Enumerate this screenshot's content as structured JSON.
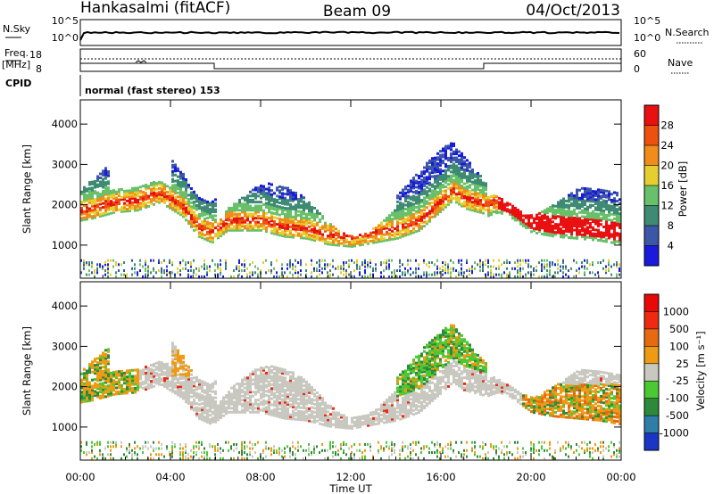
{
  "header": {
    "station": "Hankasalmi (fitACF)",
    "beam": "Beam 09",
    "date": "04/Oct/2013"
  },
  "nsky_panel": {
    "left_label": "N.Sky",
    "right_label": "N.Search",
    "ticks": [
      "10^5",
      "10^0"
    ]
  },
  "freq_panel": {
    "left_label_1": "Freq.",
    "left_label_2": "[MHz]",
    "left_ticks": [
      "18",
      "8"
    ],
    "right_label": "Nave",
    "right_ticks": [
      "60",
      "0"
    ]
  },
  "cpid": {
    "label": "CPID",
    "text": "normal (fast stereo) 153"
  },
  "chart_data": [
    {
      "type": "heatmap",
      "title": "Power",
      "xlabel": "Time UT",
      "ylabel": "Slant Range [km]",
      "x_ticks": [
        "00:00",
        "04:00",
        "08:00",
        "12:00",
        "16:00",
        "20:00",
        "00:00"
      ],
      "xlim": [
        0,
        24
      ],
      "y_ticks": [
        1000,
        2000,
        3000,
        4000
      ],
      "ylim": [
        180,
        4600
      ],
      "colorbar_label": "Power [dB]",
      "colorbar_ticks": [
        4,
        8,
        12,
        16,
        20,
        24,
        28
      ],
      "colors": [
        "#1a1adc",
        "#3c56a8",
        "#3f8a72",
        "#69c06a",
        "#e5cf30",
        "#f08c1c",
        "#ee5010",
        "#e81010"
      ],
      "trace_time_h": [
        0,
        0.5,
        1.5,
        2.5,
        3.5,
        4.5,
        5.2,
        5.8,
        6.5,
        8,
        9,
        10,
        11,
        12,
        13,
        14,
        15,
        16,
        16.5,
        17,
        18,
        18.5,
        19,
        20,
        21,
        22,
        23,
        24
      ],
      "trace_range_km": [
        1900,
        1950,
        2100,
        2150,
        2350,
        2000,
        1500,
        1350,
        1650,
        1650,
        1500,
        1450,
        1300,
        1250,
        1350,
        1450,
        1650,
        2150,
        2400,
        2200,
        2050,
        2150,
        2050,
        1650,
        1550,
        1500,
        1450,
        1350
      ]
    },
    {
      "type": "heatmap",
      "title": "Velocity",
      "xlabel": "Time UT",
      "ylabel": "Slant Range [km]",
      "x_ticks": [
        "00:00",
        "04:00",
        "08:00",
        "12:00",
        "16:00",
        "20:00",
        "00:00"
      ],
      "xlim": [
        0,
        24
      ],
      "y_ticks": [
        1000,
        2000,
        3000,
        4000
      ],
      "ylim": [
        180,
        4600
      ],
      "colorbar_label": "Velocity [m s⁻¹]",
      "colorbar_ticks": [
        "1000",
        "500",
        "100",
        "25",
        "-25",
        "-100",
        "-500",
        "-1000"
      ],
      "colors": [
        "#1b36c4",
        "#2f7ea8",
        "#2d8a3c",
        "#4cc832",
        "#c8c8c0",
        "#ee9a14",
        "#e86a10",
        "#ee2a10",
        "#e80808"
      ]
    }
  ]
}
